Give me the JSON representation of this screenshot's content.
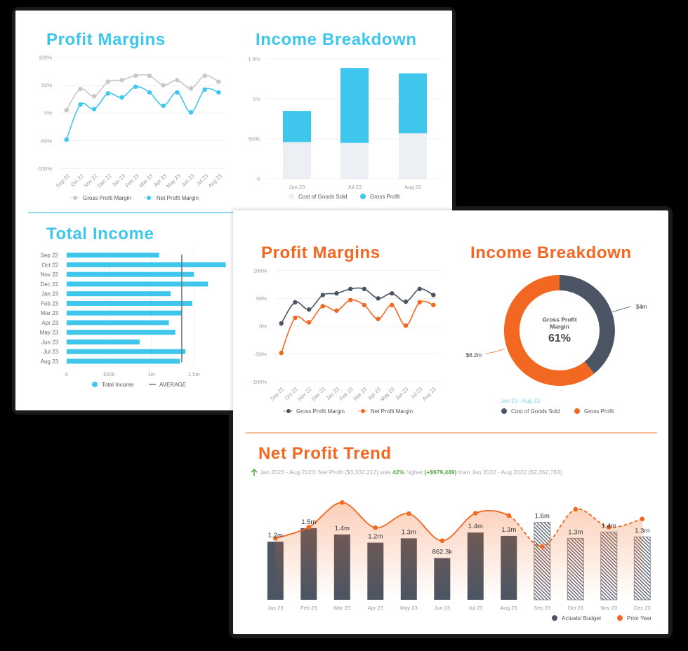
{
  "colors": {
    "background": "#000000",
    "blue": "#3ec6ec",
    "orange": "#f26722",
    "slate": "#4b5563",
    "light_gray": "#c8c8c8",
    "cogs_light": "#eceff3",
    "green": "#5aa64a",
    "average_line": "#777777"
  },
  "net_profit_trend": {
    "summary": {
      "trend_icon": "arrow-up-icon",
      "prefix": "Jan 2023 - Aug 2023: Net Profit ($3,332,212) was ",
      "percent": "42%",
      "middle": " higher ",
      "delta": "(+$979,449)",
      "suffix": " than Jan 2022 - Aug 2022 ($2,352,763)."
    }
  },
  "chart_data": [
    {
      "id": "profit-margins-blue",
      "type": "line",
      "title": "Profit Margins",
      "categories": [
        "Sep 22",
        "Oct 22",
        "Nov 22",
        "Dec 22",
        "Jan 23",
        "Feb 23",
        "Mar 23",
        "Apr 23",
        "May 23",
        "Jun 23",
        "Jul 23",
        "Aug 23"
      ],
      "series": [
        {
          "name": "Gross Profit Margin",
          "color": "#c8c8c8",
          "values": [
            5,
            43,
            30,
            56,
            59,
            67,
            67,
            50,
            59,
            44,
            67,
            56
          ]
        },
        {
          "name": "Net Profit Margin",
          "color": "#3ec6ec",
          "values": [
            -48,
            15,
            7,
            35,
            28,
            47,
            37,
            13,
            37,
            1,
            42,
            37
          ]
        }
      ],
      "yticks": [
        "100%",
        "50%",
        "0%",
        "-50%",
        "-100%"
      ],
      "ylim": [
        -100,
        100
      ],
      "xlabel": "",
      "ylabel": "",
      "grid": true,
      "legend_position": "bottom"
    },
    {
      "id": "income-breakdown-stacked",
      "type": "bar",
      "stacked": true,
      "title": "Income Breakdown",
      "categories": [
        "Jun 23",
        "Jul 23",
        "Aug 23"
      ],
      "series": [
        {
          "name": "Cost of Goods Sold",
          "color": "#eceff3",
          "values": [
            460000,
            450000,
            570000
          ]
        },
        {
          "name": "Gross Profit",
          "color": "#3ec6ec",
          "values": [
            390000,
            935000,
            750000
          ]
        }
      ],
      "yticks": [
        "1.5m",
        "1m",
        "500k",
        "0"
      ],
      "ylim": [
        0,
        1500000
      ],
      "xlabel": "",
      "ylabel": "",
      "grid": true,
      "legend_position": "bottom"
    },
    {
      "id": "total-income",
      "type": "bar",
      "orientation": "horizontal",
      "title": "Total Income",
      "categories": [
        "Sep 22",
        "Oct 22",
        "Nov 22",
        "Dec 22",
        "Jan 23",
        "Feb 23",
        "Mar 23",
        "Apr 23",
        "May 23",
        "Jun 23",
        "Jul 23",
        "Aug 23"
      ],
      "series": [
        {
          "name": "Total Income",
          "color": "#3ec6ec",
          "values": [
            1090000,
            1875000,
            1500000,
            1665000,
            1225000,
            1480000,
            1360000,
            1205000,
            1280000,
            860000,
            1400000,
            1335000
          ]
        }
      ],
      "reference_line": {
        "name": "AVERAGE",
        "value": 1356000,
        "color": "#777777"
      },
      "xticks": [
        "0",
        "500k",
        "1m",
        "1.5m",
        "2m"
      ],
      "xlim": [
        0,
        2000000
      ],
      "xlabel": "",
      "ylabel": "",
      "grid": true,
      "legend_position": "bottom"
    },
    {
      "id": "profit-margins-orange",
      "type": "line",
      "title": "Profit Margins",
      "categories": [
        "Sep 22",
        "Oct 22",
        "Nov 22",
        "Dec 22",
        "Jan 23",
        "Feb 23",
        "Mar 23",
        "Apr 23",
        "May 23",
        "Jun 23",
        "Jul 23",
        "Aug 23"
      ],
      "series": [
        {
          "name": "Gross Profit Margin",
          "color": "#4b5563",
          "values": [
            5,
            43,
            30,
            56,
            59,
            67,
            67,
            50,
            59,
            44,
            67,
            56
          ]
        },
        {
          "name": "Net Profit Margin",
          "color": "#f26722",
          "values": [
            -48,
            15,
            7,
            36,
            28,
            47,
            38,
            13,
            38,
            1,
            43,
            38
          ]
        }
      ],
      "yticks": [
        "100%",
        "50%",
        "0%",
        "-50%",
        "-100%"
      ],
      "ylim": [
        -100,
        100
      ],
      "xlabel": "",
      "ylabel": "",
      "grid": true,
      "legend_position": "bottom"
    },
    {
      "id": "income-breakdown-donut",
      "type": "pie",
      "donut": true,
      "title": "Income Breakdown",
      "period": "Jan 23 - Aug 23",
      "center": {
        "label_line1": "Gross Profit",
        "label_line2": "Margin",
        "value": "61%"
      },
      "slices": [
        {
          "name": "Cost of Goods Sold",
          "value": 4000000,
          "label": "$4m",
          "color": "#4b5563"
        },
        {
          "name": "Gross Profit",
          "value": 6200000,
          "label": "$6.2m",
          "color": "#f26722"
        }
      ],
      "legend_position": "bottom"
    },
    {
      "id": "net-profit-trend",
      "type": "bar",
      "combo": "bar+line",
      "title": "Net Profit Trend",
      "categories": [
        "Jan 23",
        "Feb 23",
        "Mar 23",
        "Apr 23",
        "May 23",
        "Jun 23",
        "Jul 23",
        "Aug 23",
        "Sep 23",
        "Oct 23",
        "Nov 23",
        "Dec 23"
      ],
      "series": [
        {
          "name": "Actuals/ Budget",
          "type": "bar",
          "color": "#4b5563",
          "values": [
            1200000,
            1480000,
            1350000,
            1180000,
            1270000,
            862300,
            1390000,
            1320000,
            1600000,
            1270000,
            1400000,
            1300000
          ],
          "labels": [
            "1.2m",
            "1.5m",
            "1.4m",
            "1.2m",
            "1.3m",
            "862.3k",
            "1.4m",
            "1.3m",
            "1.6m",
            "1.3m",
            "1.4m",
            "1.3m"
          ],
          "kind": [
            "actual",
            "actual",
            "actual",
            "actual",
            "actual",
            "actual",
            "actual",
            "actual",
            "budget",
            "budget",
            "budget",
            "budget"
          ]
        },
        {
          "name": "Prior Year",
          "type": "line",
          "color": "#f26722",
          "values": [
            1270000,
            1500000,
            2010000,
            1490000,
            1780000,
            1220000,
            1790000,
            1740000,
            1100000,
            1870000,
            1500000,
            1670000
          ]
        }
      ],
      "xlabel": "",
      "ylabel": "",
      "grid": false,
      "legend_position": "bottom-right"
    }
  ]
}
